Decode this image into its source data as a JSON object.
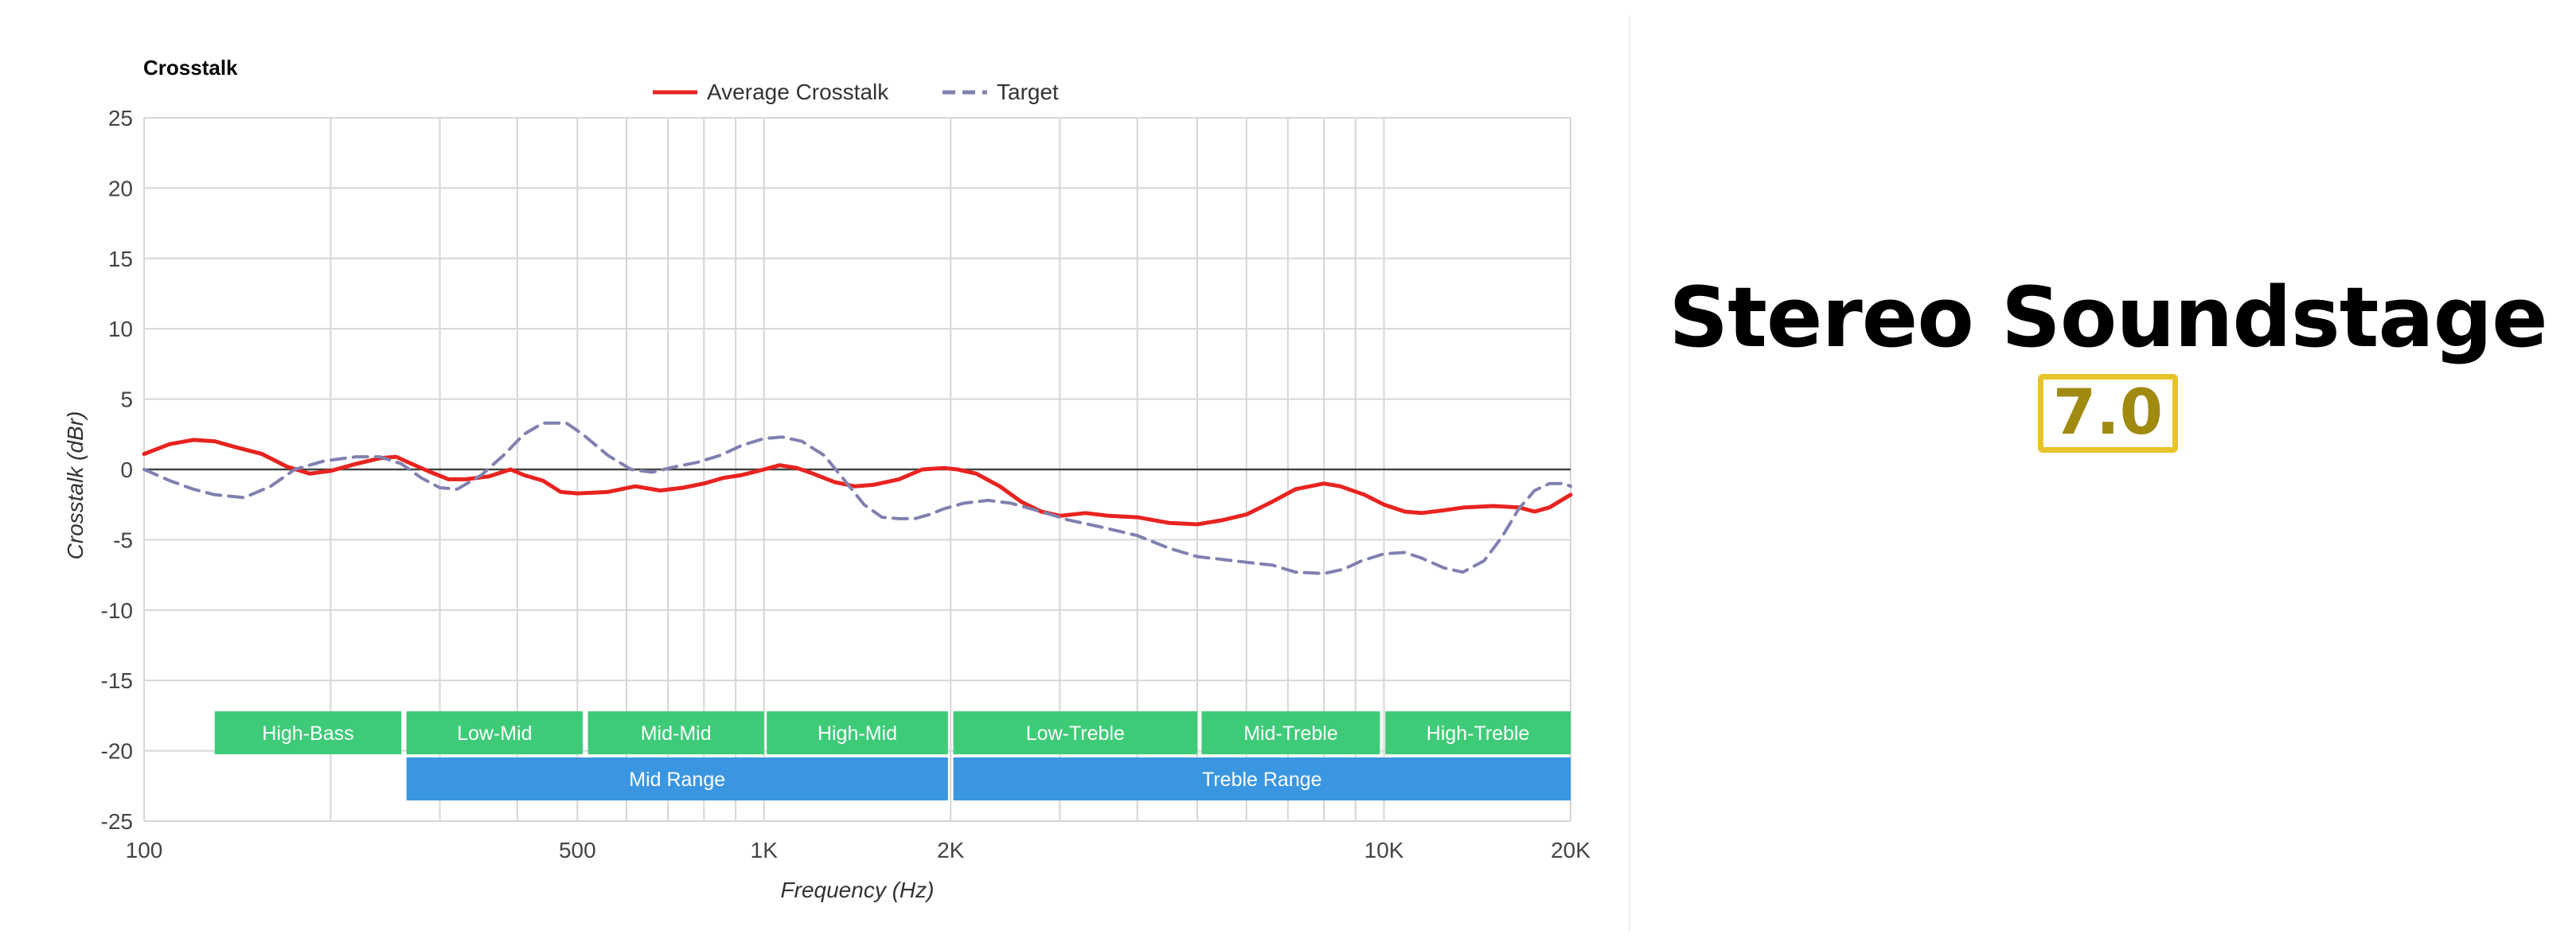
{
  "chart_data": {
    "type": "line",
    "title": "Crosstalk",
    "xlabel": "Frequency (Hz)",
    "ylabel": "Crosstalk (dBr)",
    "xscale": "log",
    "xlim": [
      100,
      20000
    ],
    "ylim": [
      -25,
      25
    ],
    "grid": true,
    "legend_position": "top-center",
    "x_tick_labels": [
      {
        "value": 100,
        "label": "100"
      },
      {
        "value": 500,
        "label": "500"
      },
      {
        "value": 1000,
        "label": "1K"
      },
      {
        "value": 2000,
        "label": "2K"
      },
      {
        "value": 10000,
        "label": "10K"
      },
      {
        "value": 20000,
        "label": "20K"
      }
    ],
    "y_ticks": [
      25,
      20,
      15,
      10,
      5,
      0,
      -5,
      -10,
      -15,
      -20,
      -25
    ],
    "series": [
      {
        "name": "Average Crosstalk",
        "color": "#e8231f",
        "style": "solid",
        "points": [
          [
            100,
            1.1
          ],
          [
            110,
            1.8
          ],
          [
            120,
            2.1
          ],
          [
            130,
            2.0
          ],
          [
            140,
            1.6
          ],
          [
            155,
            1.1
          ],
          [
            170,
            0.2
          ],
          [
            185,
            -0.3
          ],
          [
            200,
            -0.1
          ],
          [
            220,
            0.4
          ],
          [
            240,
            0.8
          ],
          [
            255,
            0.9
          ],
          [
            270,
            0.4
          ],
          [
            290,
            -0.2
          ],
          [
            310,
            -0.7
          ],
          [
            330,
            -0.7
          ],
          [
            360,
            -0.5
          ],
          [
            390,
            0.0
          ],
          [
            410,
            -0.4
          ],
          [
            440,
            -0.8
          ],
          [
            470,
            -1.6
          ],
          [
            500,
            -1.7
          ],
          [
            560,
            -1.6
          ],
          [
            620,
            -1.2
          ],
          [
            680,
            -1.5
          ],
          [
            740,
            -1.3
          ],
          [
            800,
            -1.0
          ],
          [
            860,
            -0.6
          ],
          [
            920,
            -0.4
          ],
          [
            1000,
            0.0
          ],
          [
            1060,
            0.3
          ],
          [
            1130,
            0.1
          ],
          [
            1200,
            -0.3
          ],
          [
            1300,
            -0.9
          ],
          [
            1400,
            -1.2
          ],
          [
            1500,
            -1.1
          ],
          [
            1650,
            -0.7
          ],
          [
            1800,
            0.0
          ],
          [
            1950,
            0.1
          ],
          [
            2050,
            0.0
          ],
          [
            2200,
            -0.3
          ],
          [
            2400,
            -1.2
          ],
          [
            2600,
            -2.3
          ],
          [
            2800,
            -3.0
          ],
          [
            3000,
            -3.3
          ],
          [
            3300,
            -3.1
          ],
          [
            3600,
            -3.3
          ],
          [
            4000,
            -3.4
          ],
          [
            4500,
            -3.8
          ],
          [
            5000,
            -3.9
          ],
          [
            5500,
            -3.6
          ],
          [
            6000,
            -3.2
          ],
          [
            6600,
            -2.3
          ],
          [
            7200,
            -1.4
          ],
          [
            8000,
            -1.0
          ],
          [
            8500,
            -1.2
          ],
          [
            9300,
            -1.8
          ],
          [
            10000,
            -2.5
          ],
          [
            10800,
            -3.0
          ],
          [
            11500,
            -3.1
          ],
          [
            12500,
            -2.9
          ],
          [
            13500,
            -2.7
          ],
          [
            15000,
            -2.6
          ],
          [
            16500,
            -2.7
          ],
          [
            17500,
            -3.0
          ],
          [
            18500,
            -2.7
          ],
          [
            20000,
            -1.8
          ]
        ]
      },
      {
        "name": "Target",
        "color": "#8080b0",
        "style": "dashed",
        "points": [
          [
            100,
            0.0
          ],
          [
            110,
            -0.8
          ],
          [
            120,
            -1.4
          ],
          [
            130,
            -1.8
          ],
          [
            145,
            -2.0
          ],
          [
            160,
            -1.2
          ],
          [
            175,
            0.0
          ],
          [
            195,
            0.6
          ],
          [
            220,
            0.9
          ],
          [
            240,
            0.9
          ],
          [
            260,
            0.4
          ],
          [
            280,
            -0.6
          ],
          [
            300,
            -1.3
          ],
          [
            320,
            -1.4
          ],
          [
            350,
            -0.4
          ],
          [
            380,
            1.0
          ],
          [
            410,
            2.5
          ],
          [
            440,
            3.3
          ],
          [
            480,
            3.3
          ],
          [
            510,
            2.5
          ],
          [
            560,
            1.0
          ],
          [
            610,
            0.0
          ],
          [
            660,
            -0.2
          ],
          [
            720,
            0.2
          ],
          [
            780,
            0.5
          ],
          [
            850,
            1.0
          ],
          [
            920,
            1.7
          ],
          [
            1000,
            2.2
          ],
          [
            1070,
            2.3
          ],
          [
            1150,
            2.0
          ],
          [
            1250,
            1.0
          ],
          [
            1350,
            -0.8
          ],
          [
            1450,
            -2.5
          ],
          [
            1550,
            -3.4
          ],
          [
            1650,
            -3.5
          ],
          [
            1750,
            -3.5
          ],
          [
            1850,
            -3.2
          ],
          [
            1950,
            -2.8
          ],
          [
            2100,
            -2.4
          ],
          [
            2300,
            -2.2
          ],
          [
            2500,
            -2.4
          ],
          [
            2800,
            -3.0
          ],
          [
            3100,
            -3.6
          ],
          [
            3500,
            -4.1
          ],
          [
            4000,
            -4.7
          ],
          [
            4500,
            -5.6
          ],
          [
            5000,
            -6.2
          ],
          [
            5500,
            -6.4
          ],
          [
            6000,
            -6.6
          ],
          [
            6600,
            -6.8
          ],
          [
            7200,
            -7.3
          ],
          [
            8000,
            -7.4
          ],
          [
            8600,
            -7.1
          ],
          [
            9200,
            -6.5
          ],
          [
            10000,
            -6.0
          ],
          [
            10800,
            -5.9
          ],
          [
            11500,
            -6.3
          ],
          [
            12500,
            -7.0
          ],
          [
            13400,
            -7.3
          ],
          [
            14500,
            -6.5
          ],
          [
            15500,
            -4.8
          ],
          [
            16500,
            -2.8
          ],
          [
            17500,
            -1.5
          ],
          [
            18500,
            -1.0
          ],
          [
            19500,
            -1.0
          ],
          [
            20000,
            -1.2
          ]
        ]
      }
    ],
    "range_bands_row1": [
      {
        "label": "High-Bass",
        "from": 130,
        "to": 260,
        "color": "#3ecb78"
      },
      {
        "label": "Low-Mid",
        "from": 265,
        "to": 510,
        "color": "#3ecb78"
      },
      {
        "label": "Mid-Mid",
        "from": 520,
        "to": 1000,
        "color": "#3ecb78"
      },
      {
        "label": "High-Mid",
        "from": 1010,
        "to": 1980,
        "color": "#3ecb78"
      },
      {
        "label": "Low-Treble",
        "from": 2020,
        "to": 5000,
        "color": "#3ecb78"
      },
      {
        "label": "Mid-Treble",
        "from": 5080,
        "to": 9850,
        "color": "#3ecb78"
      },
      {
        "label": "High-Treble",
        "from": 10050,
        "to": 20000,
        "color": "#3ecb78"
      }
    ],
    "range_bands_row2": [
      {
        "label": "Mid Range",
        "from": 265,
        "to": 1980,
        "color": "#3b96e2"
      },
      {
        "label": "Treble Range",
        "from": 2020,
        "to": 20000,
        "color": "#3b96e2"
      }
    ]
  },
  "score": {
    "title": "Stereo Soundstage",
    "value": "7.0",
    "accent_color": "#e8c42a",
    "value_color": "#a08a12"
  }
}
